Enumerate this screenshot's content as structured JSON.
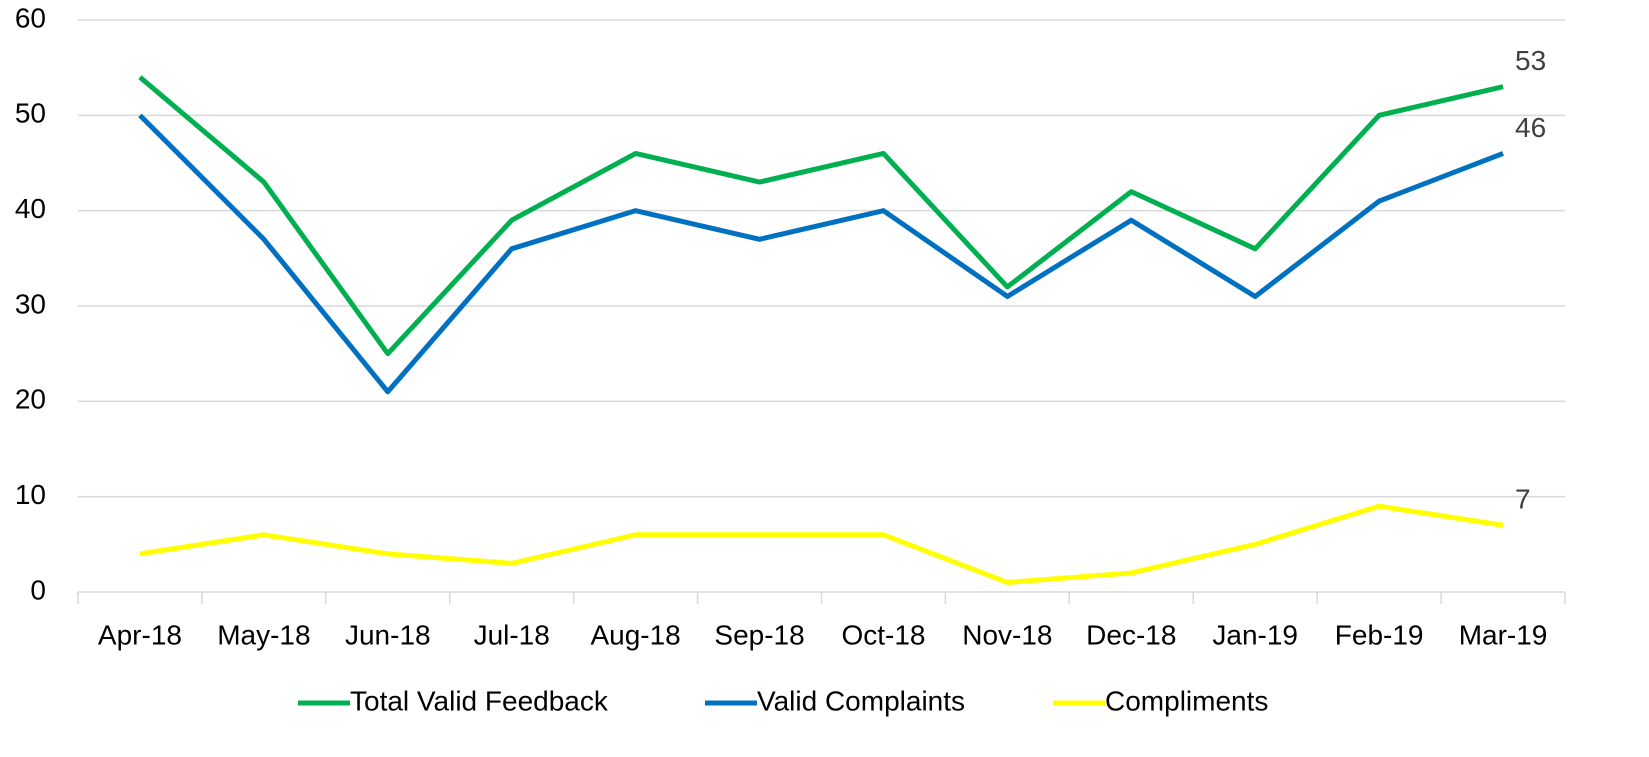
{
  "chart_data": {
    "type": "line",
    "categories": [
      "Apr-18",
      "May-18",
      "Jun-18",
      "Jul-18",
      "Aug-18",
      "Sep-18",
      "Oct-18",
      "Nov-18",
      "Dec-18",
      "Jan-19",
      "Feb-19",
      "Mar-19"
    ],
    "series": [
      {
        "name": "Total Valid Feedback",
        "color": "#00b050",
        "values": [
          54,
          43,
          25,
          39,
          46,
          43,
          46,
          32,
          42,
          36,
          50,
          53
        ]
      },
      {
        "name": "Valid Complaints",
        "color": "#0070c0",
        "values": [
          50,
          37,
          21,
          36,
          40,
          37,
          40,
          31,
          39,
          31,
          41,
          46
        ]
      },
      {
        "name": "Compliments",
        "color": "#ffff00",
        "values": [
          4,
          6,
          4,
          3,
          6,
          6,
          6,
          1,
          2,
          5,
          9,
          7
        ]
      }
    ],
    "ylim": [
      0,
      60
    ],
    "yticks": [
      0,
      10,
      20,
      30,
      40,
      50,
      60
    ],
    "grid": true,
    "legend": "bottom"
  }
}
